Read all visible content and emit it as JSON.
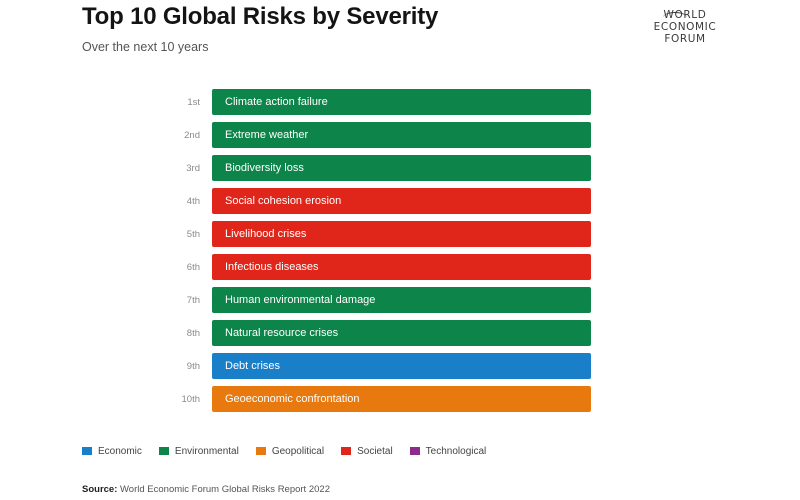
{
  "header": {
    "title": "Top 10 Global Risks by Severity",
    "subtitle": "Over the next 10 years"
  },
  "logo": {
    "lines": [
      "WORLD",
      "ECONOMIC",
      "FORUM"
    ]
  },
  "chart_data": {
    "type": "table",
    "title": "Top 10 Global Risks by Severity",
    "subtitle": "Over the next 10 years",
    "columns": [
      "rank",
      "risk",
      "category"
    ],
    "rows": [
      {
        "rank": "1st",
        "risk": "Climate action failure",
        "category": "Environmental"
      },
      {
        "rank": "2nd",
        "risk": "Extreme weather",
        "category": "Environmental"
      },
      {
        "rank": "3rd",
        "risk": "Biodiversity loss",
        "category": "Environmental"
      },
      {
        "rank": "4th",
        "risk": "Social cohesion erosion",
        "category": "Societal"
      },
      {
        "rank": "5th",
        "risk": "Livelihood crises",
        "category": "Societal"
      },
      {
        "rank": "6th",
        "risk": "Infectious diseases",
        "category": "Societal"
      },
      {
        "rank": "7th",
        "risk": "Human environmental damage",
        "category": "Environmental"
      },
      {
        "rank": "8th",
        "risk": "Natural resource crises",
        "category": "Environmental"
      },
      {
        "rank": "9th",
        "risk": "Debt crises",
        "category": "Economic"
      },
      {
        "rank": "10th",
        "risk": "Geoeconomic confrontation",
        "category": "Geopolitical"
      }
    ],
    "legend": [
      {
        "name": "Economic",
        "color": "#1a7fc9"
      },
      {
        "name": "Environmental",
        "color": "#0d8449"
      },
      {
        "name": "Geopolitical",
        "color": "#e8790e"
      },
      {
        "name": "Societal",
        "color": "#e0261a"
      },
      {
        "name": "Technological",
        "color": "#8b2b8b"
      }
    ],
    "legend_placement": "bottom-left"
  },
  "source": {
    "label": "Source:",
    "text": " World Economic Forum Global Risks Report 2022"
  }
}
